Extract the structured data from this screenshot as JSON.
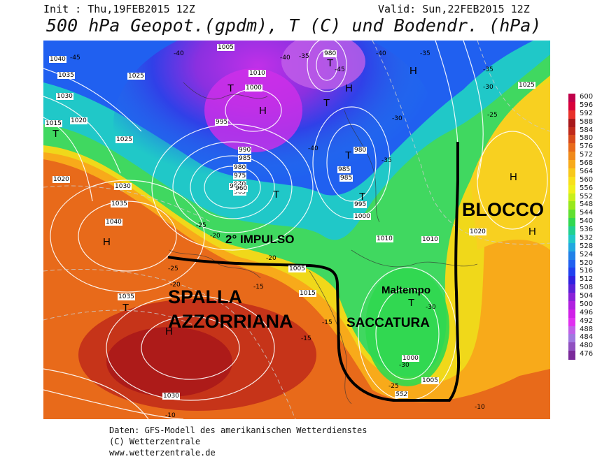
{
  "header": {
    "init": "Init : Thu,19FEB2015 12Z",
    "valid": "Valid: Sun,22FEB2015 12Z",
    "title": "500 hPa Geopot.(gpdm), T (C) und Bodendr. (hPa)"
  },
  "legend": {
    "values": [
      "600",
      "596",
      "592",
      "588",
      "584",
      "580",
      "576",
      "572",
      "568",
      "564",
      "560",
      "556",
      "552",
      "548",
      "544",
      "540",
      "536",
      "532",
      "528",
      "524",
      "520",
      "516",
      "512",
      "508",
      "504",
      "500",
      "496",
      "492",
      "488",
      "484",
      "480",
      "476"
    ],
    "colors": [
      "#c0004a",
      "#d8003a",
      "#e8302a",
      "#a8181a",
      "#c02a1a",
      "#d84a1a",
      "#e86a1a",
      "#f08a1a",
      "#f8aa1a",
      "#f8c81a",
      "#f8e01a",
      "#f0f01a",
      "#c8f01a",
      "#98e81a",
      "#60e030",
      "#30d850",
      "#20d090",
      "#20c8c8",
      "#20a8e0",
      "#2080e8",
      "#2060f0",
      "#2040f0",
      "#3020e0",
      "#5a20d8",
      "#8a20d8",
      "#b020e0",
      "#d020e8",
      "#e030f0",
      "#c060e8",
      "#a078e0",
      "#9050c0",
      "#7a2a9a"
    ]
  },
  "annotations": {
    "blocco": "BLOCCO",
    "secondo_impulso": "2° IMPULSO",
    "spalla_1": "SPALLA",
    "spalla_2": "AZZORRIANA",
    "maltempo": "Maltempo",
    "saccatura": "SACCATURA"
  },
  "pressure_centers": [
    {
      "letter": "H"
    },
    {
      "letter": "H"
    },
    {
      "letter": "H"
    },
    {
      "letter": "H"
    },
    {
      "letter": "H"
    },
    {
      "letter": "H"
    },
    {
      "letter": "T"
    },
    {
      "letter": "T"
    },
    {
      "letter": "T"
    },
    {
      "letter": "T"
    },
    {
      "letter": "T"
    },
    {
      "letter": "T"
    },
    {
      "letter": "T"
    },
    {
      "letter": "T"
    },
    {
      "letter": "T"
    },
    {
      "letter": "T"
    },
    {
      "letter": "H"
    }
  ],
  "isobar_labels": [
    "1040",
    "1035",
    "1030",
    "1025",
    "1015",
    "1020",
    "1005",
    "1010",
    "1000",
    "995",
    "990",
    "985",
    "980",
    "975",
    "970",
    "965",
    "960",
    "980",
    "985",
    "995",
    "1000",
    "1010",
    "1015",
    "1025",
    "1030",
    "1035",
    "1040",
    "1020",
    "1020",
    "1010",
    "1005",
    "1000",
    "1005",
    "1030",
    "1035",
    "1025",
    "980",
    "985",
    "960"
  ],
  "temperature_labels": [
    "-45",
    "-40",
    "-40",
    "-40",
    "-35",
    "-35",
    "-35",
    "-30",
    "-30",
    "-25",
    "-25",
    "-20",
    "-20",
    "-15",
    "-15",
    "-10",
    "-10",
    "-25",
    "-30",
    "-35",
    "-40",
    "-45",
    "-20",
    "-25",
    "-30",
    "-15"
  ],
  "contour_label": "552",
  "footer": {
    "line1": "Daten: GFS-Modell des amerikanischen Wetterdienstes",
    "line2": "(C) Wetterzentrale",
    "line3": "www.wetterzentrale.de"
  }
}
